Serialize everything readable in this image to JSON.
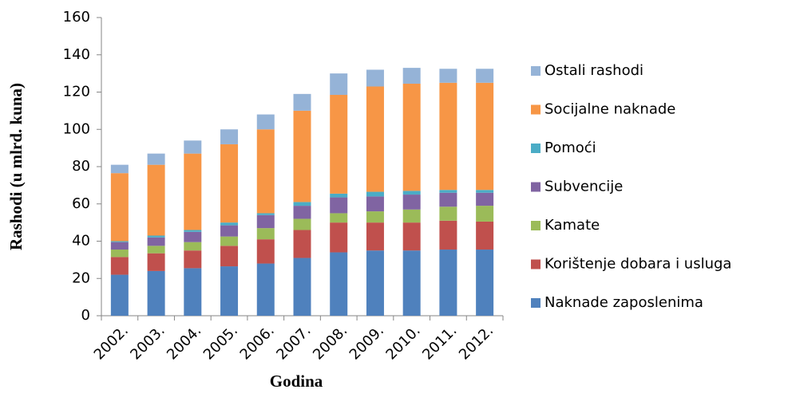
{
  "chart_data": {
    "type": "stacked_bar",
    "x_label": "Godina",
    "y_label": "Rashodi (u mlrd. kuna)",
    "categories": [
      "2002.",
      "2003.",
      "2004.",
      "2005.",
      "2006.",
      "2007.",
      "2008.",
      "2009.",
      "2010.",
      "2011.",
      "2012."
    ],
    "series": [
      {
        "name": "Naknade zaposlenima",
        "color": "#4f81bd",
        "values": [
          22,
          24,
          25.5,
          26.5,
          28,
          31,
          34,
          35,
          35,
          35.5,
          35.5
        ]
      },
      {
        "name": "Korištenje dobara i usluga",
        "color": "#c0504d",
        "values": [
          9.5,
          9.5,
          9.5,
          11,
          13,
          15,
          16,
          15,
          15,
          15.5,
          15
        ]
      },
      {
        "name": "Kamate",
        "color": "#9bbb59",
        "values": [
          4,
          4,
          4.5,
          5,
          6,
          6,
          5,
          6,
          7,
          7.5,
          8.5
        ]
      },
      {
        "name": "Subvencije",
        "color": "#8064a2",
        "values": [
          4,
          4.5,
          5.5,
          6,
          7,
          7,
          8.5,
          8,
          8,
          7.5,
          7
        ]
      },
      {
        "name": "Pomoći",
        "color": "#4bacc6",
        "values": [
          0.5,
          1,
          1,
          1.5,
          1,
          2,
          2,
          2.5,
          2,
          1.5,
          1.5
        ]
      },
      {
        "name": "Socijalne naknade",
        "color": "#f79646",
        "values": [
          36.5,
          38,
          41,
          42,
          45,
          49,
          53,
          56.5,
          57.5,
          57.5,
          57.5
        ]
      },
      {
        "name": "Ostali rashodi",
        "color": "#95b3d7",
        "values": [
          4.5,
          6,
          7,
          8,
          8,
          9,
          11.5,
          9,
          8.5,
          7.5,
          7.5
        ]
      }
    ],
    "ylim": [
      0,
      160
    ],
    "yticks": [
      0,
      20,
      40,
      60,
      80,
      100,
      120,
      140,
      160
    ],
    "grid": false,
    "legend": "right"
  }
}
